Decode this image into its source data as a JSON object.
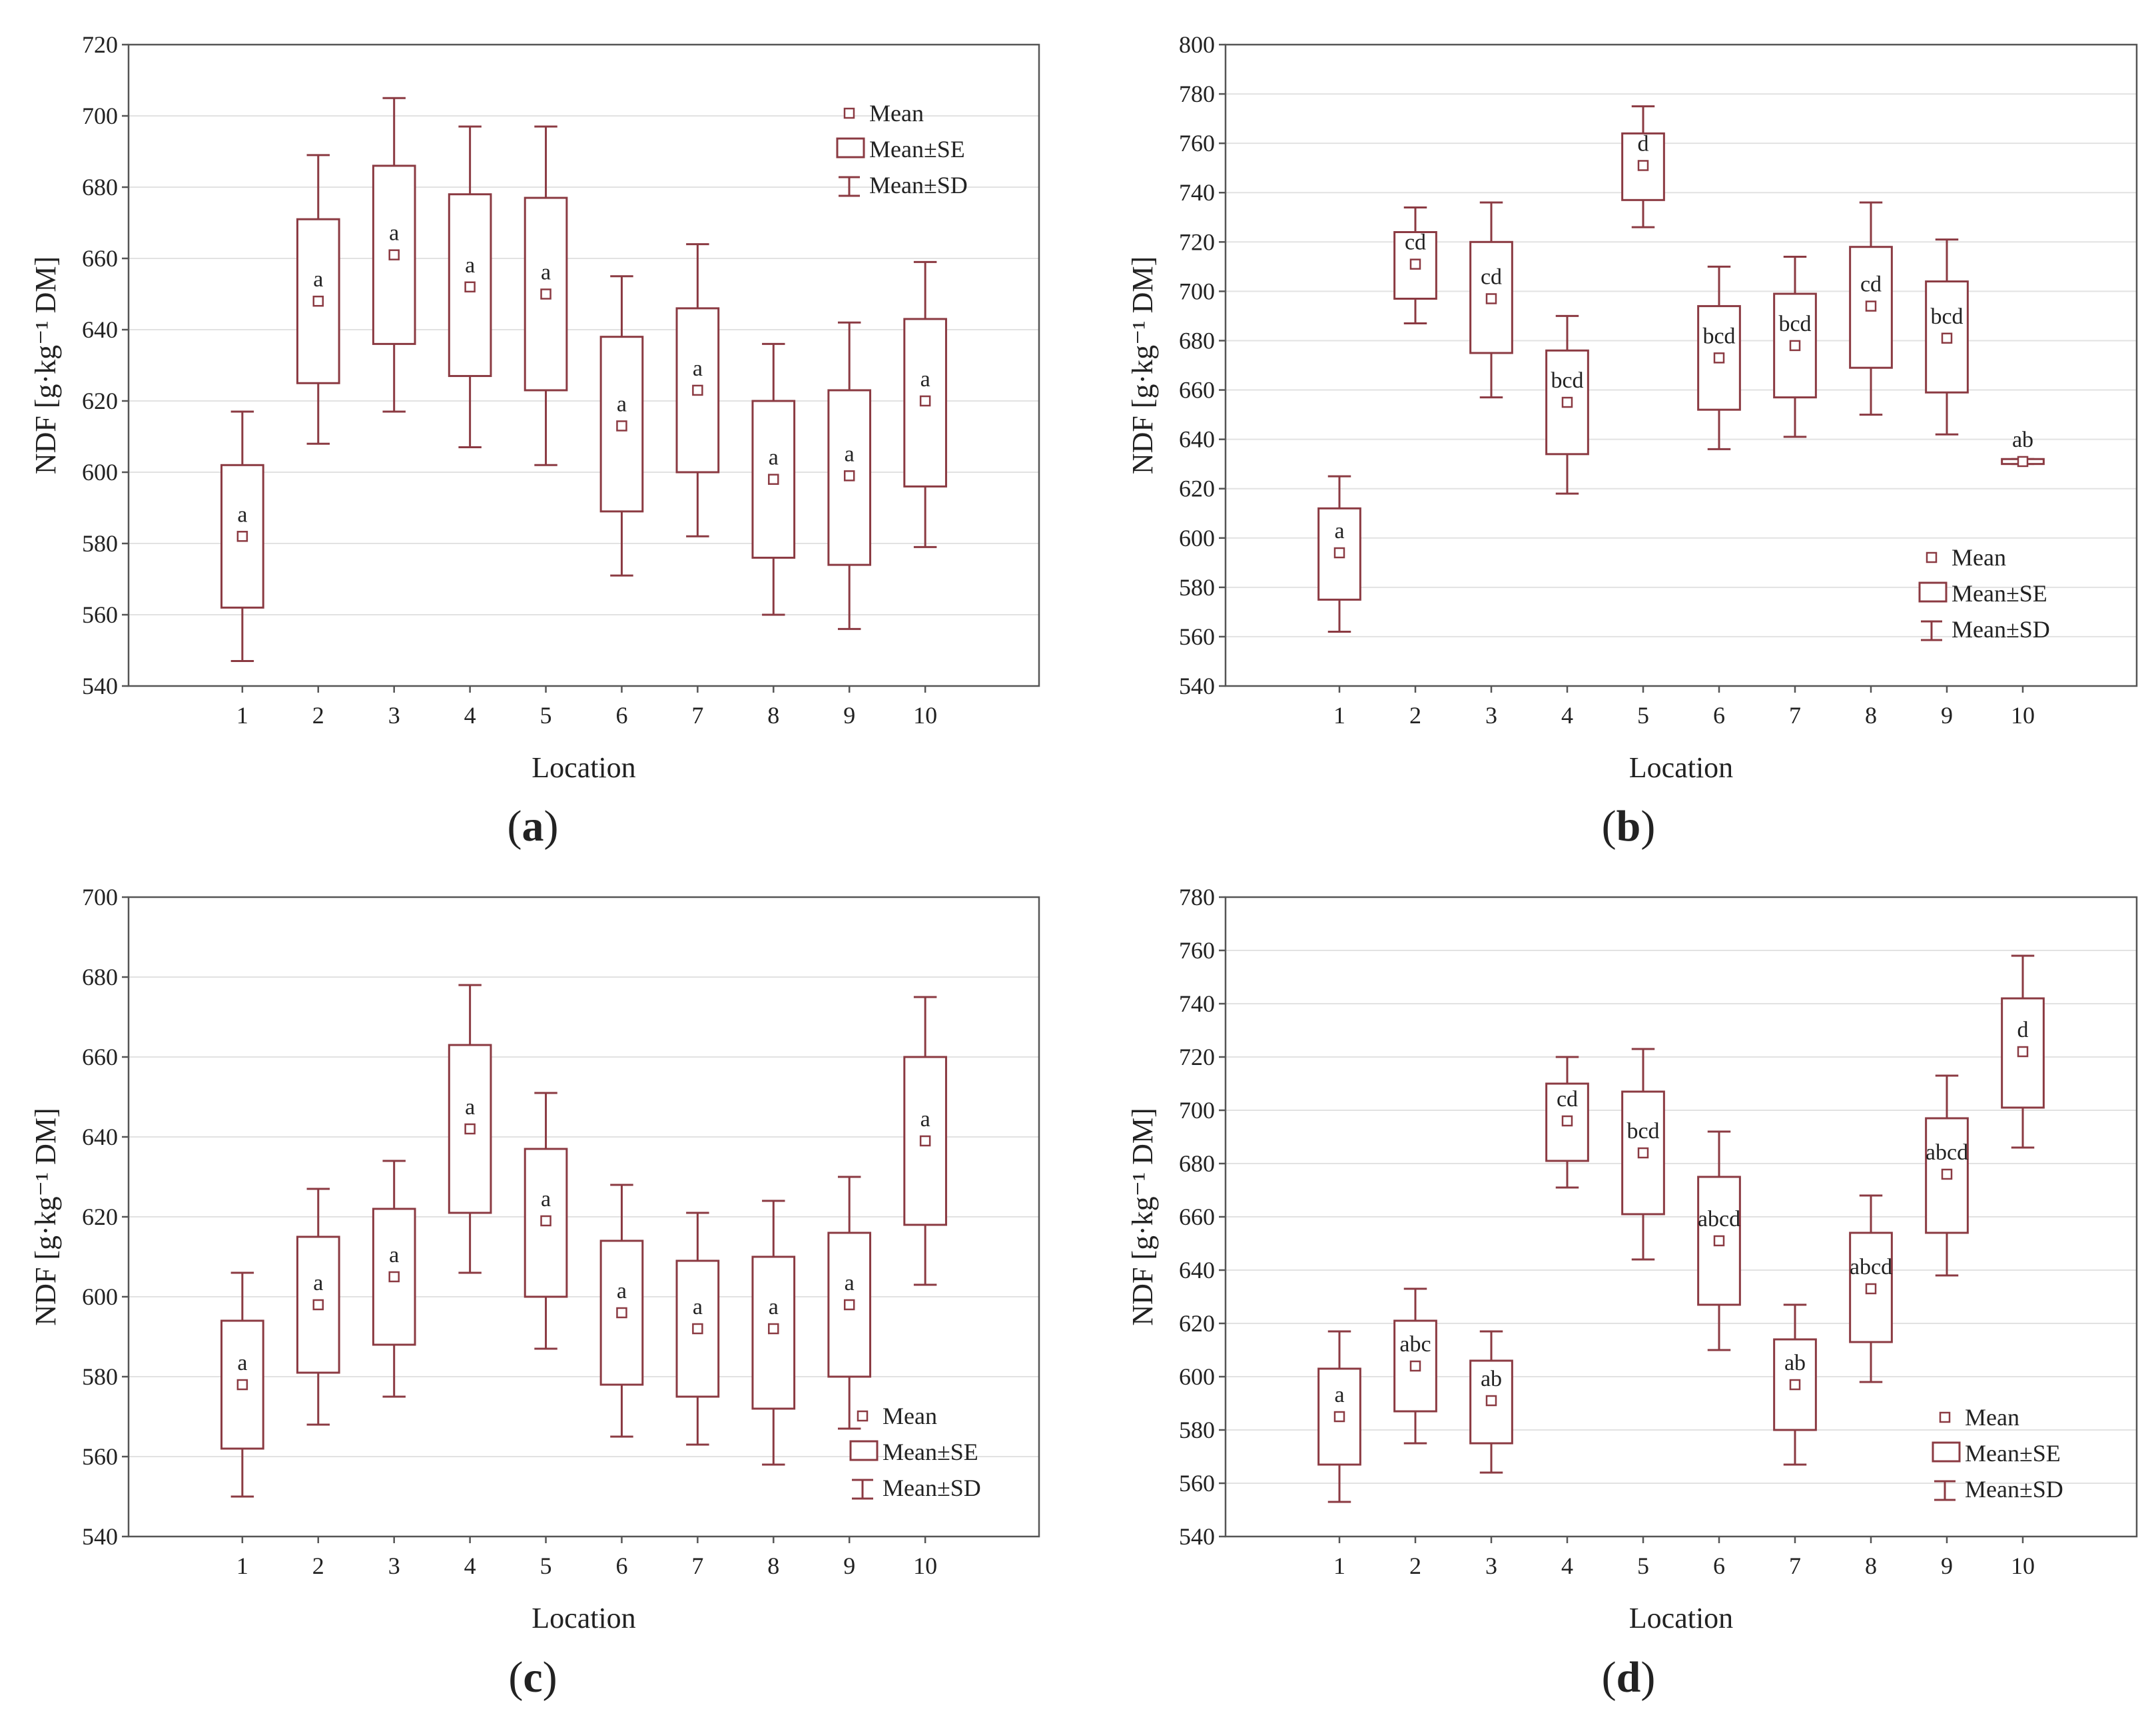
{
  "colors": {
    "series": "#8b3a42",
    "axis": "#555555",
    "grid": "#e2e2e2",
    "background": "#ffffff"
  },
  "legend": {
    "mean": "Mean",
    "se": "Mean±SE",
    "sd": "Mean±SD"
  },
  "chart_data": [
    {
      "type": "box",
      "panel_label": "a",
      "xlabel": "Location",
      "ylabel": "NDF [g·kg⁻¹ DM]",
      "ylim": [
        540,
        720
      ],
      "yticks": [
        540,
        560,
        580,
        600,
        620,
        640,
        660,
        680,
        700,
        720
      ],
      "categories": [
        "1",
        "2",
        "3",
        "4",
        "5",
        "6",
        "7",
        "8",
        "9",
        "10"
      ],
      "legend_position": "top-right",
      "mean": [
        582,
        648,
        661,
        652,
        650,
        613,
        623,
        598,
        599,
        620
      ],
      "se_low": [
        562,
        625,
        636,
        627,
        623,
        589,
        600,
        576,
        574,
        596
      ],
      "se_high": [
        602,
        671,
        686,
        678,
        677,
        638,
        646,
        620,
        623,
        643
      ],
      "sd_low": [
        547,
        608,
        617,
        607,
        602,
        571,
        582,
        560,
        556,
        579
      ],
      "sd_high": [
        617,
        689,
        705,
        697,
        697,
        655,
        664,
        636,
        642,
        659
      ],
      "labels": [
        "a",
        "a",
        "a",
        "a",
        "a",
        "a",
        "a",
        "a",
        "a",
        "a"
      ]
    },
    {
      "type": "box",
      "panel_label": "b",
      "xlabel": "Location",
      "ylabel": "NDF [g·kg⁻¹ DM]",
      "ylim": [
        540,
        800
      ],
      "yticks": [
        540,
        560,
        580,
        600,
        620,
        640,
        660,
        680,
        700,
        720,
        740,
        760,
        780,
        800
      ],
      "categories": [
        "1",
        "2",
        "3",
        "4",
        "5",
        "6",
        "7",
        "8",
        "9",
        "10"
      ],
      "legend_position": "bottom-right",
      "mean": [
        594,
        711,
        697,
        655,
        751,
        673,
        678,
        694,
        681,
        631
      ],
      "se_low": [
        575,
        697,
        675,
        634,
        737,
        652,
        657,
        669,
        659,
        630
      ],
      "se_high": [
        612,
        724,
        720,
        676,
        764,
        694,
        699,
        718,
        704,
        632
      ],
      "sd_low": [
        562,
        687,
        657,
        618,
        726,
        636,
        641,
        650,
        642,
        630
      ],
      "sd_high": [
        625,
        734,
        736,
        690,
        775,
        710,
        714,
        736,
        721,
        632
      ],
      "labels": [
        "a",
        "cd",
        "cd",
        "bcd",
        "d",
        "bcd",
        "bcd",
        "cd",
        "bcd",
        "ab"
      ]
    },
    {
      "type": "box",
      "panel_label": "c",
      "xlabel": "Location",
      "ylabel": "NDF [g·kg⁻¹ DM]",
      "ylim": [
        540,
        700
      ],
      "yticks": [
        540,
        560,
        580,
        600,
        620,
        640,
        660,
        680,
        700
      ],
      "categories": [
        "1",
        "2",
        "3",
        "4",
        "5",
        "6",
        "7",
        "8",
        "9",
        "10"
      ],
      "legend_position": "bottom-right",
      "mean": [
        578,
        598,
        605,
        642,
        619,
        596,
        592,
        592,
        598,
        639
      ],
      "se_low": [
        562,
        581,
        588,
        621,
        600,
        578,
        575,
        572,
        580,
        618
      ],
      "se_high": [
        594,
        615,
        622,
        663,
        637,
        614,
        609,
        610,
        616,
        660
      ],
      "sd_low": [
        550,
        568,
        575,
        606,
        587,
        565,
        563,
        558,
        567,
        603
      ],
      "sd_high": [
        606,
        627,
        634,
        678,
        651,
        628,
        621,
        624,
        630,
        675
      ],
      "labels": [
        "a",
        "a",
        "a",
        "a",
        "a",
        "a",
        "a",
        "a",
        "a",
        "a"
      ]
    },
    {
      "type": "box",
      "panel_label": "d",
      "xlabel": "Location",
      "ylabel": "NDF [g·kg⁻¹ DM]",
      "ylim": [
        540,
        780
      ],
      "yticks": [
        540,
        560,
        580,
        600,
        620,
        640,
        660,
        680,
        700,
        720,
        740,
        760,
        780
      ],
      "categories": [
        "1",
        "2",
        "3",
        "4",
        "5",
        "6",
        "7",
        "8",
        "9",
        "10"
      ],
      "legend_position": "bottom-right",
      "mean": [
        585,
        604,
        591,
        696,
        684,
        651,
        597,
        633,
        676,
        722
      ],
      "se_low": [
        567,
        587,
        575,
        681,
        661,
        627,
        580,
        613,
        654,
        701
      ],
      "se_high": [
        603,
        621,
        606,
        710,
        707,
        675,
        614,
        654,
        697,
        742
      ],
      "sd_low": [
        553,
        575,
        564,
        671,
        644,
        610,
        567,
        598,
        638,
        686
      ],
      "sd_high": [
        617,
        633,
        617,
        720,
        723,
        692,
        627,
        668,
        713,
        758
      ],
      "labels": [
        "a",
        "abc",
        "ab",
        "cd",
        "bcd",
        "abcd",
        "ab",
        "abcd",
        "abcd",
        "d"
      ]
    }
  ]
}
